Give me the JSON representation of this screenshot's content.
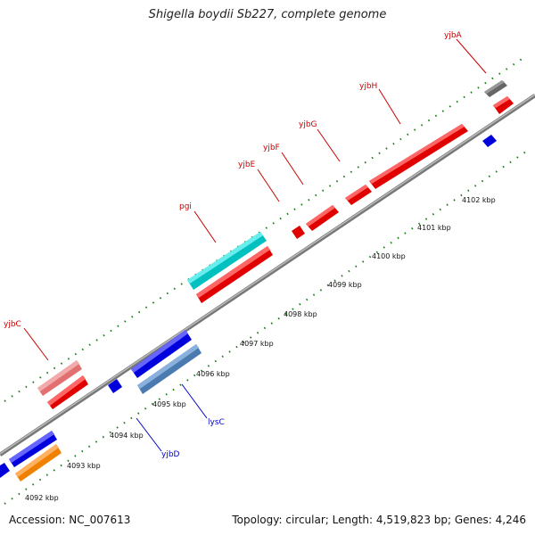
{
  "title": "Shigella boydii Sb227, complete genome",
  "accession": "Accession: NC_007613",
  "summary": "Topology: circular; Length: 4,519,823 bp; Genes: 4,246",
  "colors": {
    "backbone": "#888888",
    "ticks": "#1a7a1a",
    "label_red": "#cc0000",
    "label_blue": "#0000cc"
  },
  "kbp_labels": [
    "4092 kbp",
    "4093 kbp",
    "4094 kbp",
    "4095 kbp",
    "4096 kbp",
    "4097 kbp",
    "4098 kbp",
    "4099 kbp",
    "4100 kbp",
    "4101 kbp",
    "4102 kbp"
  ],
  "genes": [
    {
      "name": "yjbA",
      "color": "#cc0000",
      "strand": "upper"
    },
    {
      "name": "yjbH",
      "color": "#cc0000",
      "strand": "upper"
    },
    {
      "name": "yjbG",
      "color": "#cc0000",
      "strand": "upper"
    },
    {
      "name": "yjbF",
      "color": "#cc0000",
      "strand": "upper"
    },
    {
      "name": "yjbE",
      "color": "#cc0000",
      "strand": "upper"
    },
    {
      "name": "pgi",
      "color": "#cc0000",
      "strand": "upper"
    },
    {
      "name": "yjbC",
      "color": "#cc0000",
      "strand": "upper"
    },
    {
      "name": "lysC",
      "color": "#0000cc",
      "strand": "lower"
    },
    {
      "name": "yjbD",
      "color": "#0000cc",
      "strand": "lower"
    }
  ]
}
